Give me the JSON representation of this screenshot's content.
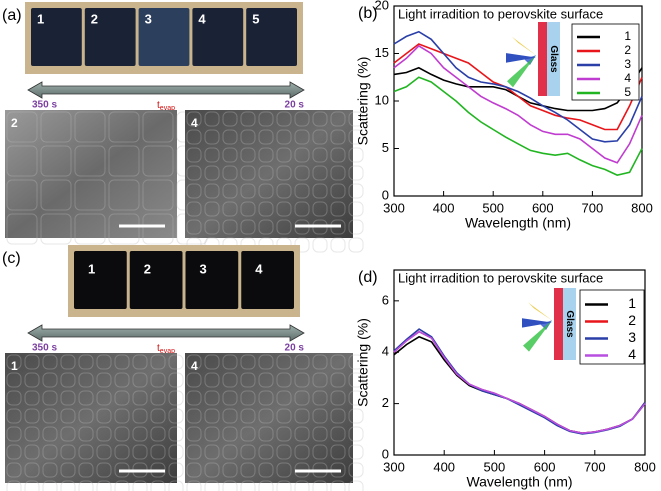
{
  "panels": {
    "a": {
      "label": "(a)",
      "samples": [
        "1",
        "2",
        "3",
        "4",
        "5"
      ],
      "time_start": "350 s",
      "time_label": {
        "main": "t",
        "sub": "evap"
      },
      "time_end": "20 s",
      "sem_labels": [
        "2",
        "4"
      ]
    },
    "b": {
      "label": "(b)"
    },
    "c": {
      "label": "(c)",
      "samples": [
        "1",
        "2",
        "3",
        "4"
      ],
      "time_start": "350 s",
      "time_label": {
        "main": "t",
        "sub": "evap"
      },
      "time_end": "20 s",
      "sem_labels": [
        "1",
        "4"
      ]
    },
    "d": {
      "label": "(d)"
    }
  },
  "chart_data": [
    {
      "type": "line",
      "title": "Light irradition to perovskite surface",
      "x_label": "Wavelength (nm)",
      "y_label": "Scattering (%)",
      "inset_label": "Glass",
      "x": [
        300,
        325,
        350,
        375,
        400,
        425,
        450,
        475,
        500,
        525,
        550,
        575,
        600,
        625,
        650,
        675,
        700,
        725,
        750,
        775,
        800
      ],
      "xlim": [
        300,
        800
      ],
      "xticks": [
        300,
        400,
        500,
        600,
        700,
        800
      ],
      "ylim": [
        0,
        20
      ],
      "yticks": [
        0,
        5,
        10,
        15,
        20
      ],
      "series": [
        {
          "name": "1",
          "color": "#000000",
          "values": [
            12.8,
            13,
            13.5,
            12.8,
            12.2,
            11.8,
            11.5,
            11.5,
            11.5,
            11.2,
            10.5,
            9.8,
            9.5,
            9.2,
            9,
            9,
            9,
            9.2,
            9.8,
            11.5,
            13.5
          ]
        },
        {
          "name": "2",
          "color": "#e8151a",
          "values": [
            14,
            15,
            16,
            15.5,
            15,
            14.5,
            14,
            13,
            12,
            11.5,
            10.5,
            9.5,
            9,
            8.5,
            8.2,
            8,
            7.5,
            7,
            7,
            9.5,
            12.5
          ]
        },
        {
          "name": "3",
          "color": "#2a3fa8",
          "values": [
            16,
            16.8,
            17.3,
            16.5,
            15,
            13.5,
            12.5,
            12,
            11.8,
            11.5,
            11,
            10.3,
            9.5,
            8.8,
            8,
            7,
            6,
            5.7,
            5.8,
            7.5,
            10.5
          ]
        },
        {
          "name": "4",
          "color": "#c03cd0",
          "values": [
            13.5,
            14.5,
            15.8,
            15,
            13.5,
            12.5,
            11.5,
            10.5,
            9.8,
            9.2,
            8.5,
            7.5,
            6.8,
            6.5,
            6.5,
            6,
            5,
            4,
            3.5,
            5.5,
            8.5
          ]
        },
        {
          "name": "5",
          "color": "#22b522",
          "values": [
            11,
            11.5,
            12.5,
            12,
            11,
            10,
            8.8,
            7.8,
            7,
            6.2,
            5.5,
            4.8,
            4.5,
            4.3,
            4.5,
            3.8,
            3.2,
            2.8,
            2.2,
            2.5,
            5
          ]
        }
      ]
    },
    {
      "type": "line",
      "title": "Light irradition to perovskite surface",
      "x_label": "Wavelength (nm)",
      "y_label": "Scattering (%)",
      "inset_label": "Glass",
      "x": [
        300,
        325,
        350,
        375,
        400,
        425,
        450,
        475,
        500,
        525,
        550,
        575,
        600,
        625,
        650,
        675,
        700,
        725,
        750,
        775,
        800
      ],
      "xlim": [
        300,
        800
      ],
      "xticks": [
        300,
        400,
        500,
        600,
        700,
        800
      ],
      "ylim": [
        0,
        7.2
      ],
      "yticks": [
        0,
        2,
        4,
        6
      ],
      "series": [
        {
          "name": "1",
          "color": "#000000",
          "values": [
            3.9,
            4.3,
            4.6,
            4.4,
            3.7,
            3.1,
            2.7,
            2.5,
            2.35,
            2.2,
            2,
            1.75,
            1.5,
            1.2,
            0.95,
            0.85,
            0.9,
            1,
            1.15,
            1.4,
            2
          ]
        },
        {
          "name": "2",
          "color": "#e8151a",
          "values": [
            4,
            4.45,
            4.8,
            4.55,
            3.8,
            3.15,
            2.75,
            2.55,
            2.4,
            2.2,
            2,
            1.75,
            1.5,
            1.2,
            0.95,
            0.85,
            0.9,
            1,
            1.15,
            1.4,
            2.05
          ]
        },
        {
          "name": "3",
          "color": "#2a3fa8",
          "values": [
            4.05,
            4.5,
            4.9,
            4.6,
            3.85,
            3.2,
            2.75,
            2.5,
            2.35,
            2.2,
            1.95,
            1.7,
            1.45,
            1.15,
            0.92,
            0.82,
            0.88,
            0.98,
            1.12,
            1.4,
            2.05
          ]
        },
        {
          "name": "4",
          "color": "#b84fe0",
          "values": [
            4,
            4.45,
            4.8,
            4.55,
            3.8,
            3.15,
            2.75,
            2.55,
            2.4,
            2.2,
            2,
            1.75,
            1.5,
            1.2,
            0.95,
            0.85,
            0.9,
            1,
            1.15,
            1.4,
            2
          ]
        }
      ]
    }
  ]
}
